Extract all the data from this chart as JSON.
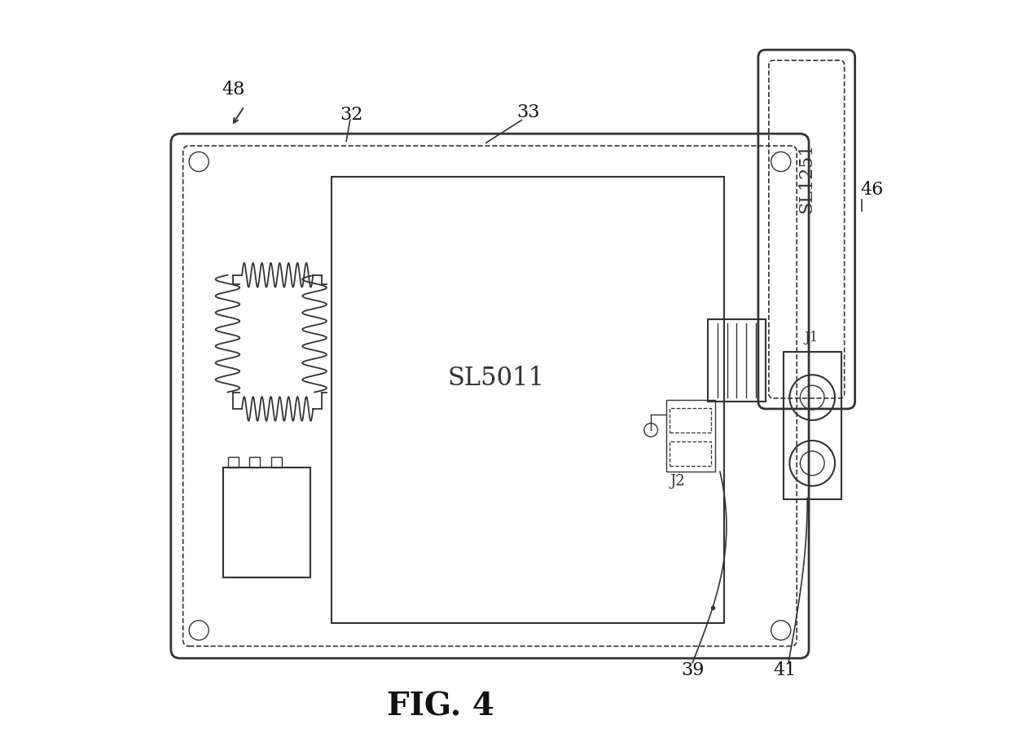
{
  "background_color": "#ffffff",
  "title": "FIG. 4",
  "title_fontsize": 28,
  "title_font": "serif",
  "sl5011_text": "SL5011",
  "sl1251_text": "SL1251"
}
